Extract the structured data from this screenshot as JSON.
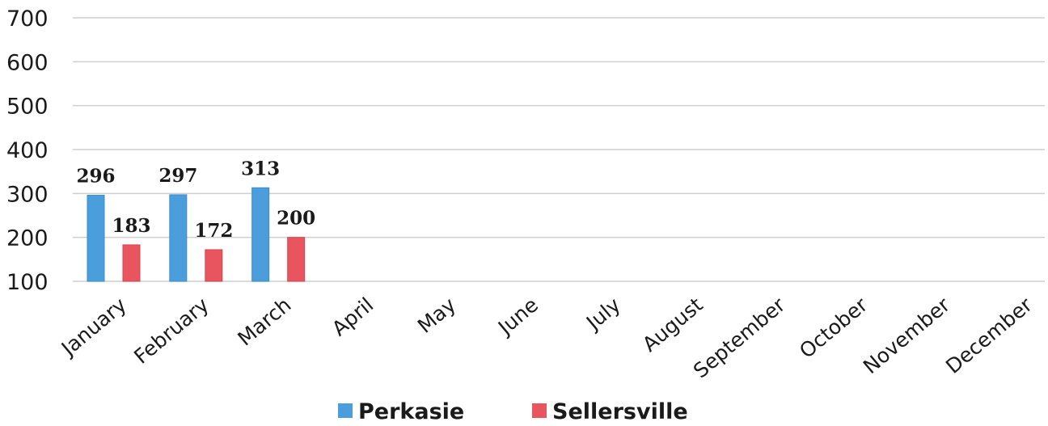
{
  "chart_data": {
    "type": "bar",
    "title": "",
    "xlabel": "",
    "ylabel": "",
    "ylim": [
      100,
      700
    ],
    "yticks": [
      100,
      200,
      300,
      400,
      500,
      600,
      700
    ],
    "grid": true,
    "legend_position": "bottom",
    "categories": [
      "January",
      "February",
      "March",
      "April",
      "May",
      "June",
      "July",
      "August",
      "September",
      "October",
      "November",
      "December"
    ],
    "series": [
      {
        "name": "Perkasie",
        "color": "#4a9edb",
        "values": [
          296,
          297,
          313,
          null,
          null,
          null,
          null,
          null,
          null,
          null,
          null,
          null
        ]
      },
      {
        "name": "Sellersville",
        "color": "#e8555f",
        "values": [
          183,
          172,
          200,
          null,
          null,
          null,
          null,
          null,
          null,
          null,
          null,
          null
        ]
      }
    ]
  }
}
